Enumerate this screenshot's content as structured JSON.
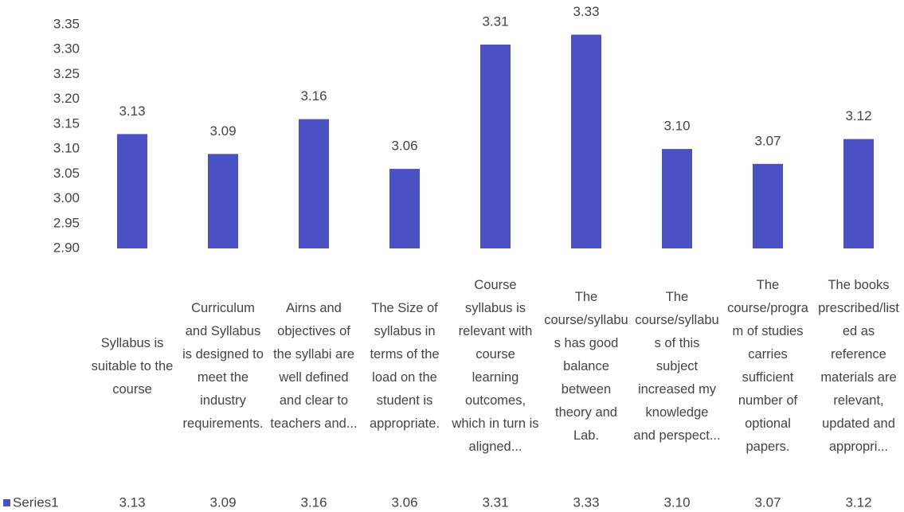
{
  "chart_data": {
    "type": "bar",
    "categories": [
      "Syllabus is suitable to the course",
      "Curriculum and Syllabus is designed to meet the industry requirements.",
      "Airns and objectives of the syllabi are well defined and clear to teachers and...",
      "The Size of syllabus in terms of the load on the student is appropriate.",
      "Course syllabus is relevant with course learning outcomes, which in turn is aligned...",
      "The course/syllabus has good balance between theory and Lab.",
      "The course/syllabus of this subject increased my knowledge and perspect...",
      "The course/program of studies carries sufficient number of optional papers.",
      "The books prescribed/listed as reference materials are relevant, updated and appropri..."
    ],
    "series": [
      {
        "name": "Series1",
        "color": "#4b50c2",
        "values": [
          3.13,
          3.09,
          3.16,
          3.06,
          3.31,
          3.33,
          3.1,
          3.07,
          3.12
        ],
        "value_labels": [
          "3.13",
          "3.09",
          "3.16",
          "3.06",
          "3.31",
          "3.33",
          "3.10",
          "3.07",
          "3.12"
        ]
      }
    ],
    "ylim": [
      2.9,
      3.35
    ],
    "yticks": [
      {
        "value": 2.9,
        "label": "2.90"
      },
      2.95,
      {
        "value": 3.0,
        "label": "3.00"
      },
      3.05,
      {
        "value": 3.1,
        "label": "3.10"
      },
      3.15,
      {
        "value": 3.2,
        "label": "3.20"
      },
      3.25,
      {
        "value": 3.3,
        "label": "3.30"
      },
      3.35
    ],
    "grid": false,
    "data_table": true
  }
}
